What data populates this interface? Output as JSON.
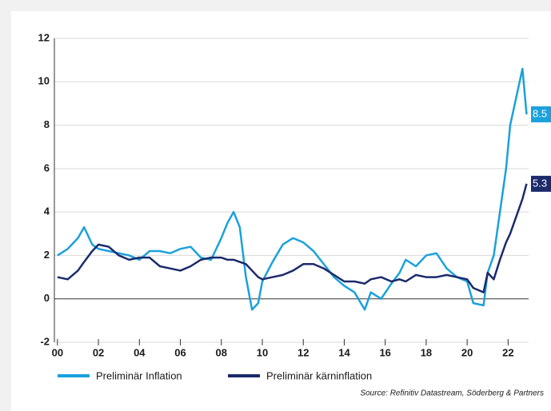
{
  "chart_data": {
    "type": "line",
    "x": [
      2000,
      2000.5,
      2001,
      2001.3,
      2001.7,
      2002,
      2002.5,
      2003,
      2003.5,
      2004,
      2004.5,
      2005,
      2005.5,
      2006,
      2006.5,
      2007,
      2007.5,
      2008,
      2008.3,
      2008.6,
      2008.9,
      2009.2,
      2009.5,
      2009.8,
      2010,
      2010.5,
      2011,
      2011.5,
      2012,
      2012.5,
      2013,
      2013.5,
      2014,
      2014.5,
      2015,
      2015.3,
      2015.8,
      2016.3,
      2016.7,
      2017,
      2017.5,
      2018,
      2018.5,
      2019,
      2019.5,
      2020,
      2020.3,
      2020.8,
      2021,
      2021.3,
      2021.6,
      2021.9,
      2022.1,
      2022.4,
      2022.7,
      2022.9
    ],
    "series": [
      {
        "name": "Preliminär Inflation",
        "color": "#1ba1dc",
        "values": [
          2.0,
          2.3,
          2.8,
          3.3,
          2.5,
          2.3,
          2.2,
          2.1,
          2.0,
          1.8,
          2.2,
          2.2,
          2.1,
          2.3,
          2.4,
          1.9,
          1.8,
          2.8,
          3.5,
          4.0,
          3.3,
          1.0,
          -0.5,
          -0.2,
          0.8,
          1.7,
          2.5,
          2.8,
          2.6,
          2.2,
          1.6,
          1.0,
          0.6,
          0.3,
          -0.5,
          0.3,
          0.0,
          0.7,
          1.2,
          1.8,
          1.5,
          2.0,
          2.1,
          1.4,
          1.0,
          0.8,
          -0.2,
          -0.3,
          1.2,
          2.0,
          4.0,
          6.0,
          8.0,
          9.3,
          10.6,
          8.5
        ]
      },
      {
        "name": "Preliminär kärninflation",
        "color": "#1b2a6b",
        "values": [
          1.0,
          0.9,
          1.3,
          1.7,
          2.2,
          2.5,
          2.4,
          2.0,
          1.8,
          1.9,
          1.9,
          1.5,
          1.4,
          1.3,
          1.5,
          1.8,
          1.9,
          1.9,
          1.8,
          1.8,
          1.7,
          1.6,
          1.3,
          1.0,
          0.9,
          1.0,
          1.1,
          1.3,
          1.6,
          1.6,
          1.4,
          1.1,
          0.8,
          0.8,
          0.7,
          0.9,
          1.0,
          0.8,
          0.9,
          0.8,
          1.1,
          1.0,
          1.0,
          1.1,
          1.0,
          0.9,
          0.5,
          0.3,
          1.2,
          0.9,
          1.8,
          2.6,
          3.0,
          3.8,
          4.6,
          5.3
        ]
      }
    ],
    "xlim": [
      1999.85,
      2023.0
    ],
    "xticks": [
      {
        "value": 2000,
        "label": "00"
      },
      {
        "value": 2002,
        "label": "02"
      },
      {
        "value": 2004,
        "label": "04"
      },
      {
        "value": 2006,
        "label": "06"
      },
      {
        "value": 2008,
        "label": "08"
      },
      {
        "value": 2010,
        "label": "10"
      },
      {
        "value": 2012,
        "label": "12"
      },
      {
        "value": 2014,
        "label": "14"
      },
      {
        "value": 2016,
        "label": "16"
      },
      {
        "value": 2018,
        "label": "18"
      },
      {
        "value": 2020,
        "label": "20"
      },
      {
        "value": 2022,
        "label": "22"
      }
    ],
    "ylim": [
      -2,
      12
    ],
    "yticks": [
      -2,
      0,
      2,
      4,
      6,
      8,
      10,
      12
    ],
    "grid": true,
    "source": "Source: Refinitiv Datastream, Söderberg & Partners"
  }
}
